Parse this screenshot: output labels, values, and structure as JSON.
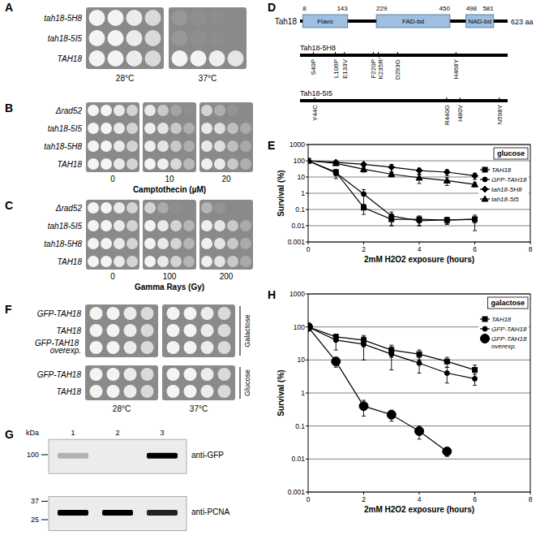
{
  "panel_labels": [
    "A",
    "B",
    "C",
    "D",
    "E",
    "F",
    "G",
    "H"
  ],
  "panels": {
    "a": {
      "rows": [
        "tah18-5H8",
        "tah18-5I5",
        "TAH18"
      ],
      "columns": [
        "28°C",
        "37°C"
      ]
    },
    "b": {
      "rows": [
        "Δrad52",
        "tah18-5I5",
        "tah18-5H8",
        "TAH18"
      ],
      "columns": [
        0,
        10,
        20
      ],
      "xlabel": "Camptothecin (µM)"
    },
    "c": {
      "rows": [
        "Δrad52",
        "tah18-5I5",
        "tah18-5H8",
        "TAH18"
      ],
      "columns": [
        0,
        100,
        200
      ],
      "xlabel": "Gamma Rays (Gy)"
    },
    "d": {
      "protein": "Tah18",
      "length": 623,
      "length_label": "623 aa",
      "domains": [
        {
          "name": "Flavo",
          "start": 8,
          "end": 143
        },
        {
          "name": "FAD-bd",
          "start": 229,
          "end": 450
        },
        {
          "name": "NAD-bd",
          "start": 498,
          "end": 581
        }
      ],
      "mutants": [
        {
          "name": "Tah18-5H8",
          "mutations": [
            {
              "label": "S40P",
              "pos": 40
            },
            {
              "label": "L106P",
              "pos": 106
            },
            {
              "label": "E133V",
              "pos": 133
            },
            {
              "label": "F220P",
              "pos": 220
            },
            {
              "label": "K235R",
              "pos": 235
            },
            {
              "label": "D293G",
              "pos": 293
            },
            {
              "label": "H468Y",
              "pos": 468
            }
          ]
        },
        {
          "name": "Tah18-5I5",
          "mutations": [
            {
              "label": "Y44C",
              "pos": 44
            },
            {
              "label": "R440G",
              "pos": 440
            },
            {
              "label": "I480V",
              "pos": 480
            },
            {
              "label": "N598Y",
              "pos": 598
            }
          ]
        }
      ]
    },
    "f": {
      "groups": [
        {
          "label": "Galactose",
          "rows": [
            "GFP-TAH18",
            "TAH18",
            "GFP-TAH18 overexp."
          ]
        },
        {
          "label": "Glucose",
          "rows": [
            "GFP-TAH18",
            "TAH18"
          ]
        }
      ],
      "columns": [
        "28°C",
        "37°C"
      ]
    },
    "g": {
      "unit": "kDa",
      "markers": [
        100,
        37,
        25
      ],
      "lanes": [
        1,
        2,
        3
      ],
      "blots": [
        {
          "label": "anti-GFP",
          "band_kda": 98,
          "bands": [
            0.25,
            0,
            1
          ]
        },
        {
          "label": "anti-PCNA",
          "band_kda": 29,
          "bands": [
            1,
            1,
            0.85
          ]
        }
      ]
    }
  },
  "chart_data": [
    {
      "type": "line",
      "title": "glucose",
      "xlabel": "2mM H2O2 exposure (hours)",
      "ylabel": "Survival (%)",
      "x": [
        0,
        1,
        2,
        3,
        4,
        5,
        6
      ],
      "xlim": [
        0,
        8
      ],
      "xticks": [
        0,
        2,
        4,
        6,
        8
      ],
      "ylim": [
        0.001,
        1000
      ],
      "yticks": [
        0.001,
        0.01,
        0.1,
        1,
        10,
        100,
        1000
      ],
      "log": "y",
      "grid": true,
      "legend": "right",
      "series": [
        {
          "name": "TAH18",
          "color": "#000000",
          "marker": "square",
          "line_style": "solid",
          "values": [
            100,
            20,
            0.13,
            0.025,
            0.025,
            0.022,
            0.025
          ],
          "errors": [
            0,
            8,
            0.08,
            0.015,
            0.015,
            0.01,
            0.02
          ]
        },
        {
          "name": "GFP-TAH18",
          "color": "#000000",
          "marker": "circle",
          "line_style": "solid",
          "values": [
            100,
            18,
            0.9,
            0.04,
            0.02,
            0.023,
            0.025
          ],
          "errors": [
            0,
            10,
            0.8,
            0.03,
            0.01,
            0.01,
            0.01
          ]
        },
        {
          "name": "tah18-5H8",
          "color": "#000000",
          "marker": "diamond",
          "line_style": "solid",
          "values": [
            100,
            80,
            60,
            40,
            25,
            20,
            12
          ],
          "errors": [
            0,
            10,
            15,
            20,
            10,
            8,
            5
          ]
        },
        {
          "name": "tah18-5I5",
          "color": "#000000",
          "marker": "triangle",
          "line_style": "solid",
          "values": [
            100,
            70,
            30,
            15,
            9,
            6,
            3.5
          ],
          "errors": [
            0,
            15,
            10,
            5,
            5,
            3,
            1
          ]
        }
      ]
    },
    {
      "type": "line",
      "title": "galactose",
      "xlabel": "2mM H2O2 exposure (hours)",
      "ylabel": "Survival (%)",
      "x": [
        0,
        1,
        2,
        3,
        4,
        5,
        6
      ],
      "xlim": [
        0,
        8
      ],
      "xticks": [
        0,
        2,
        4,
        6,
        8
      ],
      "ylim": [
        0.001,
        1000
      ],
      "yticks": [
        0.001,
        0.01,
        0.1,
        1,
        10,
        100,
        1000
      ],
      "log": "y",
      "grid": true,
      "legend": "right",
      "series": [
        {
          "name": "TAH18",
          "color": "#000000",
          "marker": "square",
          "line_style": "solid",
          "values": [
            100,
            50,
            40,
            20,
            15,
            9,
            5
          ],
          "errors": [
            0,
            10,
            15,
            8,
            5,
            3,
            2
          ]
        },
        {
          "name": "GFP-TAH18",
          "color": "#000000",
          "marker": "circle",
          "line_style": "solid",
          "values": [
            100,
            40,
            30,
            15,
            8,
            4,
            2.7
          ],
          "errors": [
            0,
            20,
            20,
            10,
            4,
            2,
            1
          ]
        },
        {
          "name": "GFP-TAH18 overexp.",
          "color": "#000000",
          "marker": "large_circle",
          "line_style": "solid",
          "values": [
            100,
            9,
            0.4,
            0.22,
            0.07,
            0.017,
            null
          ],
          "errors": [
            0,
            3,
            0.2,
            0.08,
            0.03,
            0.005,
            null
          ]
        }
      ]
    }
  ]
}
